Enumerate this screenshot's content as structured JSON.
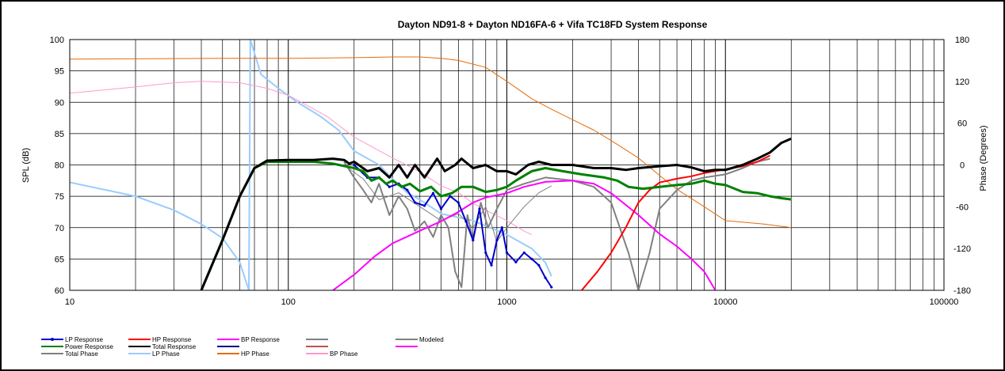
{
  "chart_data": {
    "type": "line",
    "title": "Dayton ND91-8  + Dayton  ND16FA-6  + Vifa TC18FD   System Response",
    "xlabel": "",
    "ylabel": "SPL (dB)",
    "y2label": "Phase (Degrees)",
    "x_scale": "log",
    "xlim": [
      10,
      100000
    ],
    "ylim": [
      60,
      100
    ],
    "y2lim": [
      -180,
      180
    ],
    "x_ticks": [
      10,
      100,
      1000,
      10000,
      100000
    ],
    "x_tick_labels": [
      "10",
      "100",
      "1000",
      "10000",
      "100000"
    ],
    "y_ticks": [
      60,
      65,
      70,
      75,
      80,
      85,
      90,
      95,
      100
    ],
    "y_tick_labels": [
      "60",
      "65",
      "70",
      "75",
      "80",
      "85",
      "90",
      "95",
      "100"
    ],
    "y2_ticks": [
      -180,
      -120,
      -60,
      0,
      60,
      120,
      180
    ],
    "y2_tick_labels": [
      "-180",
      "-120",
      "-60",
      "0",
      "60",
      "120",
      "180"
    ],
    "grid": true,
    "legend": [
      {
        "name": "LP Response",
        "color": "#0000cc",
        "marker": true
      },
      {
        "name": "HP Response",
        "color": "#ff0000"
      },
      {
        "name": "BP Response",
        "color": "#ff00ff"
      },
      {
        "name": "",
        "color": "#808080"
      },
      {
        "name": "Modeled",
        "color": "#808080"
      },
      {
        "name": "Power Response",
        "color": "#008000"
      },
      {
        "name": "Total Response",
        "color": "#000000"
      },
      {
        "name": "",
        "color": "#000080"
      },
      {
        "name": "",
        "color": "#c0504d"
      },
      {
        "name": "",
        "color": "#ff00ff"
      },
      {
        "name": "Total Phase",
        "color": "#808080"
      },
      {
        "name": "LP Phase",
        "color": "#99ccff"
      },
      {
        "name": "HP Phase",
        "color": "#e46c0a"
      },
      {
        "name": "BP Phase",
        "color": "#ff99cc"
      }
    ],
    "series": [
      {
        "name": "Total Response",
        "axis": "y",
        "color": "#000000",
        "width": 3,
        "points": [
          [
            40,
            60
          ],
          [
            50,
            68
          ],
          [
            60,
            75
          ],
          [
            70,
            79.5
          ],
          [
            80,
            80.7
          ],
          [
            100,
            80.8
          ],
          [
            130,
            80.8
          ],
          [
            160,
            81
          ],
          [
            180,
            80.8
          ],
          [
            190,
            80.2
          ],
          [
            200,
            80.5
          ],
          [
            230,
            79
          ],
          [
            260,
            79.5
          ],
          [
            290,
            78
          ],
          [
            320,
            80
          ],
          [
            350,
            78
          ],
          [
            380,
            80
          ],
          [
            420,
            78
          ],
          [
            480,
            81
          ],
          [
            520,
            79
          ],
          [
            580,
            80
          ],
          [
            620,
            81
          ],
          [
            700,
            79.5
          ],
          [
            800,
            80
          ],
          [
            900,
            79
          ],
          [
            1000,
            79
          ],
          [
            1100,
            78.5
          ],
          [
            1250,
            80
          ],
          [
            1400,
            80.5
          ],
          [
            1600,
            80
          ],
          [
            2000,
            80
          ],
          [
            2500,
            79.5
          ],
          [
            3000,
            79.5
          ],
          [
            3500,
            79.2
          ],
          [
            4000,
            79.5
          ],
          [
            5000,
            79.8
          ],
          [
            6000,
            80
          ],
          [
            7000,
            79.6
          ],
          [
            8000,
            79
          ],
          [
            9000,
            79.2
          ],
          [
            10000,
            79.2
          ],
          [
            12000,
            80
          ],
          [
            14000,
            81
          ],
          [
            16000,
            82
          ],
          [
            18000,
            83.5
          ],
          [
            20000,
            84.2
          ]
        ]
      },
      {
        "name": "Power Response",
        "axis": "y",
        "color": "#008000",
        "width": 3,
        "points": [
          [
            40,
            60
          ],
          [
            50,
            68
          ],
          [
            60,
            75
          ],
          [
            70,
            79.5
          ],
          [
            80,
            80.5
          ],
          [
            100,
            80.5
          ],
          [
            130,
            80.5
          ],
          [
            160,
            80.2
          ],
          [
            200,
            79.5
          ],
          [
            220,
            79
          ],
          [
            240,
            77.5
          ],
          [
            260,
            78
          ],
          [
            280,
            77
          ],
          [
            300,
            77.5
          ],
          [
            330,
            76.5
          ],
          [
            360,
            77
          ],
          [
            400,
            75.8
          ],
          [
            450,
            76.5
          ],
          [
            500,
            75
          ],
          [
            560,
            75.5
          ],
          [
            620,
            76.5
          ],
          [
            700,
            76.5
          ],
          [
            800,
            75.7
          ],
          [
            900,
            76
          ],
          [
            1000,
            76.5
          ],
          [
            1100,
            77.5
          ],
          [
            1300,
            79
          ],
          [
            1500,
            79.5
          ],
          [
            1800,
            79
          ],
          [
            2200,
            78.5
          ],
          [
            2800,
            78
          ],
          [
            3200,
            77.5
          ],
          [
            3600,
            76.5
          ],
          [
            4200,
            76.2
          ],
          [
            5000,
            76.5
          ],
          [
            6000,
            76.8
          ],
          [
            7000,
            77
          ],
          [
            8000,
            77.5
          ],
          [
            9000,
            77
          ],
          [
            10000,
            76.8
          ],
          [
            12000,
            75.7
          ],
          [
            14000,
            75.5
          ],
          [
            16000,
            75
          ],
          [
            18000,
            74.7
          ],
          [
            20000,
            74.5
          ]
        ]
      },
      {
        "name": "LP Response",
        "axis": "y",
        "color": "#0000cc",
        "width": 2,
        "points": [
          [
            200,
            80
          ],
          [
            230,
            78
          ],
          [
            260,
            78
          ],
          [
            290,
            76.5
          ],
          [
            320,
            77
          ],
          [
            350,
            76
          ],
          [
            380,
            74
          ],
          [
            420,
            73.5
          ],
          [
            460,
            75.5
          ],
          [
            500,
            73
          ],
          [
            550,
            75
          ],
          [
            600,
            74
          ],
          [
            650,
            71
          ],
          [
            700,
            68
          ],
          [
            750,
            73
          ],
          [
            800,
            66
          ],
          [
            850,
            64
          ],
          [
            900,
            68
          ],
          [
            950,
            70
          ],
          [
            1000,
            66
          ],
          [
            1100,
            64.5
          ],
          [
            1200,
            66
          ],
          [
            1300,
            65
          ],
          [
            1400,
            64
          ],
          [
            1500,
            62
          ],
          [
            1600,
            60.5
          ]
        ]
      },
      {
        "name": "HP Response",
        "axis": "y",
        "color": "#ff0000",
        "width": 2,
        "points": [
          [
            2200,
            60
          ],
          [
            2600,
            63
          ],
          [
            3000,
            66
          ],
          [
            3500,
            70
          ],
          [
            4000,
            74
          ],
          [
            4500,
            76
          ],
          [
            5000,
            77.2
          ],
          [
            6000,
            77.8
          ],
          [
            7000,
            78.2
          ],
          [
            8000,
            78.7
          ],
          [
            9000,
            79
          ],
          [
            10000,
            79.3
          ],
          [
            12000,
            79.8
          ],
          [
            14000,
            80.5
          ],
          [
            16000,
            81.5
          ]
        ]
      },
      {
        "name": "BP Response",
        "axis": "y",
        "color": "#ff00ff",
        "width": 2,
        "points": [
          [
            160,
            60
          ],
          [
            200,
            62.5
          ],
          [
            250,
            65.5
          ],
          [
            300,
            67.5
          ],
          [
            400,
            69.5
          ],
          [
            500,
            71
          ],
          [
            600,
            72.5
          ],
          [
            700,
            74
          ],
          [
            800,
            74.8
          ],
          [
            1000,
            75.5
          ],
          [
            1200,
            76.5
          ],
          [
            1500,
            77.3
          ],
          [
            2000,
            77.5
          ],
          [
            2500,
            77
          ],
          [
            3000,
            75.5
          ],
          [
            4000,
            72
          ],
          [
            5000,
            69
          ],
          [
            6000,
            67
          ],
          [
            7000,
            65
          ],
          [
            8000,
            63
          ],
          [
            9000,
            60
          ]
        ]
      },
      {
        "name": "Modeled",
        "axis": "y",
        "color": "#808080",
        "width": 2,
        "points": [
          [
            180,
            80.5
          ],
          [
            200,
            78
          ],
          [
            220,
            76
          ],
          [
            240,
            74
          ],
          [
            260,
            77
          ],
          [
            290,
            72
          ],
          [
            320,
            75
          ],
          [
            350,
            73
          ],
          [
            380,
            69.5
          ],
          [
            420,
            71
          ],
          [
            460,
            68.5
          ],
          [
            500,
            72
          ],
          [
            540,
            70
          ],
          [
            580,
            63
          ],
          [
            620,
            60.5
          ],
          [
            660,
            72
          ],
          [
            700,
            68
          ],
          [
            760,
            74
          ],
          [
            820,
            70
          ],
          [
            900,
            73
          ],
          [
            1000,
            76
          ],
          [
            1200,
            77
          ],
          [
            1500,
            78
          ],
          [
            2000,
            77.5
          ],
          [
            2500,
            76.5
          ],
          [
            3000,
            74
          ],
          [
            3600,
            66
          ],
          [
            4000,
            60
          ],
          [
            4500,
            66
          ],
          [
            5000,
            73
          ],
          [
            6000,
            76
          ],
          [
            7000,
            77.5
          ],
          [
            8000,
            78
          ],
          [
            10000,
            78.5
          ],
          [
            12000,
            79.5
          ],
          [
            14000,
            80.5
          ],
          [
            16000,
            81
          ]
        ]
      },
      {
        "name": "Total Phase",
        "axis": "y2",
        "color": "#808080",
        "width": 1,
        "points": [
          [
            180,
            0
          ],
          [
            220,
            -20
          ],
          [
            260,
            -50
          ],
          [
            320,
            -40
          ],
          [
            400,
            -60
          ],
          [
            500,
            -80
          ],
          [
            600,
            -70
          ],
          [
            700,
            -90
          ],
          [
            800,
            -60
          ],
          [
            900,
            -110
          ],
          [
            1000,
            -90
          ],
          [
            1200,
            -60
          ],
          [
            1400,
            -40
          ],
          [
            1600,
            -30
          ]
        ]
      },
      {
        "name": "LP Phase",
        "axis": "y2",
        "color": "#99ccff",
        "width": 2,
        "points": [
          [
            10,
            -25
          ],
          [
            20,
            -45
          ],
          [
            30,
            -65
          ],
          [
            40,
            -85
          ],
          [
            50,
            -105
          ],
          [
            60,
            -140
          ],
          [
            66,
            -180
          ],
          [
            67,
            180
          ],
          [
            75,
            130
          ],
          [
            90,
            110
          ],
          [
            110,
            90
          ],
          [
            140,
            70
          ],
          [
            170,
            50
          ],
          [
            200,
            20
          ],
          [
            260,
            0
          ],
          [
            300,
            -20
          ],
          [
            350,
            -40
          ],
          [
            400,
            -50
          ],
          [
            500,
            -70
          ],
          [
            700,
            -80
          ],
          [
            1000,
            -100
          ],
          [
            1300,
            -120
          ],
          [
            1500,
            -140
          ],
          [
            1600,
            -160
          ]
        ]
      },
      {
        "name": "HP Phase",
        "axis": "y2",
        "color": "#e46c0a",
        "width": 1,
        "points": [
          [
            10,
            152
          ],
          [
            50,
            153
          ],
          [
            100,
            153
          ],
          [
            200,
            154
          ],
          [
            300,
            155
          ],
          [
            400,
            155
          ],
          [
            500,
            153
          ],
          [
            600,
            150
          ],
          [
            800,
            140
          ],
          [
            1000,
            120
          ],
          [
            1300,
            95
          ],
          [
            1600,
            80
          ],
          [
            2000,
            65
          ],
          [
            2500,
            50
          ],
          [
            3000,
            35
          ],
          [
            4000,
            10
          ],
          [
            5000,
            -15
          ],
          [
            6000,
            -35
          ],
          [
            8000,
            -60
          ],
          [
            10000,
            -80
          ],
          [
            15000,
            -85
          ],
          [
            20000,
            -90
          ]
        ]
      },
      {
        "name": "BP Phase",
        "axis": "y2",
        "color": "#ff99cc",
        "width": 1,
        "points": [
          [
            10,
            103
          ],
          [
            20,
            112
          ],
          [
            30,
            118
          ],
          [
            40,
            120
          ],
          [
            60,
            118
          ],
          [
            80,
            110
          ],
          [
            100,
            100
          ],
          [
            150,
            70
          ],
          [
            200,
            40
          ],
          [
            300,
            10
          ],
          [
            400,
            -10
          ],
          [
            500,
            -30
          ],
          [
            600,
            -40
          ],
          [
            700,
            -55
          ],
          [
            800,
            -65
          ],
          [
            1000,
            -80
          ],
          [
            1200,
            -95
          ],
          [
            1300,
            -100
          ]
        ]
      }
    ]
  }
}
